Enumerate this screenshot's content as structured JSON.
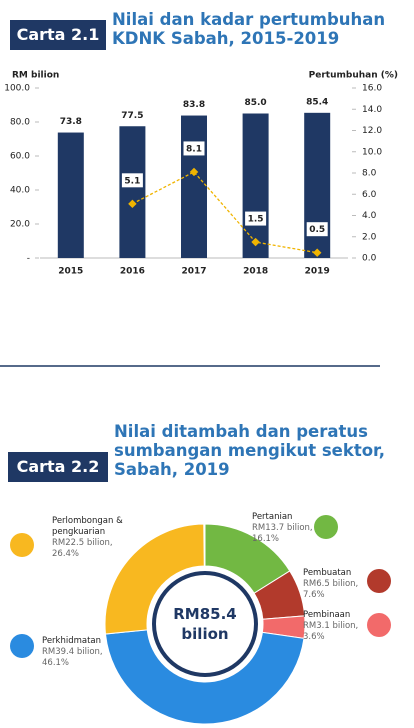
{
  "chart_data": [
    {
      "type": "bar",
      "label": "Carta 2.1",
      "title": "Nilai dan kadar pertumbuhan KDNK Sabah, 2015-2019",
      "ylabel": "RM bilion",
      "y2label": "Pertumbuhan (%)",
      "categories": [
        "2015",
        "2016",
        "2017",
        "2018",
        "2019"
      ],
      "series": [
        {
          "type": "bar",
          "color": "#1f3864",
          "values": [
            73.8,
            77.5,
            83.8,
            85.0,
            85.4
          ],
          "value_labels": [
            "73.8",
            "77.5",
            "83.8",
            "85.0",
            "85.4"
          ]
        },
        {
          "type": "line",
          "axis": "y2",
          "color": "#f0b400",
          "values": [
            null,
            5.1,
            8.1,
            1.5,
            0.5
          ]
        }
      ],
      "ylim": [
        0,
        100
      ],
      "yticks": [
        {
          "value": 0,
          "label": "-"
        },
        {
          "value": 20,
          "label": "20.0"
        },
        {
          "value": 40,
          "label": "40.0"
        },
        {
          "value": 60,
          "label": "60.0"
        },
        {
          "value": 80,
          "label": "80.0"
        },
        {
          "value": 100,
          "label": "100.0"
        }
      ],
      "y2lim": [
        0,
        16
      ],
      "y2ticks": [
        {
          "value": 0,
          "label": "0.0"
        },
        {
          "value": 2,
          "label": "2.0"
        },
        {
          "value": 4,
          "label": "4.0"
        },
        {
          "value": 6,
          "label": "6.0"
        },
        {
          "value": 8,
          "label": "8.0"
        },
        {
          "value": 10,
          "label": "10.0"
        },
        {
          "value": 12,
          "label": "12.0"
        },
        {
          "value": 14,
          "label": "14.0"
        },
        {
          "value": 16,
          "label": "16.0"
        }
      ]
    },
    {
      "type": "donut",
      "label": "Carta 2.2",
      "title": "Nilai ditambah dan peratus sumbangan mengikut sektor, Sabah, 2019",
      "center_label": "RM85.4 bilion",
      "categories": [
        "Pertanian",
        "Pembuatan",
        "Pembinaan",
        "Perkhidmatan",
        "Perlombongan & pengkuarian"
      ],
      "values": [
        16.1,
        7.6,
        3.6,
        46.1,
        26.4
      ],
      "value_labels": [
        "16.1%",
        "7.6%",
        "3.6%",
        "46.1%",
        "26.4%"
      ],
      "amount_labels": [
        "RM13.7 bilion,",
        "RM6.5 bilion,",
        "RM3.1 bilion,",
        "RM39.4 bilion,",
        "RM22.5 bilion,"
      ],
      "colors": [
        "#72b843",
        "#b23a2c",
        "#f26a6a",
        "#2a8be0",
        "#f8b820"
      ]
    }
  ]
}
